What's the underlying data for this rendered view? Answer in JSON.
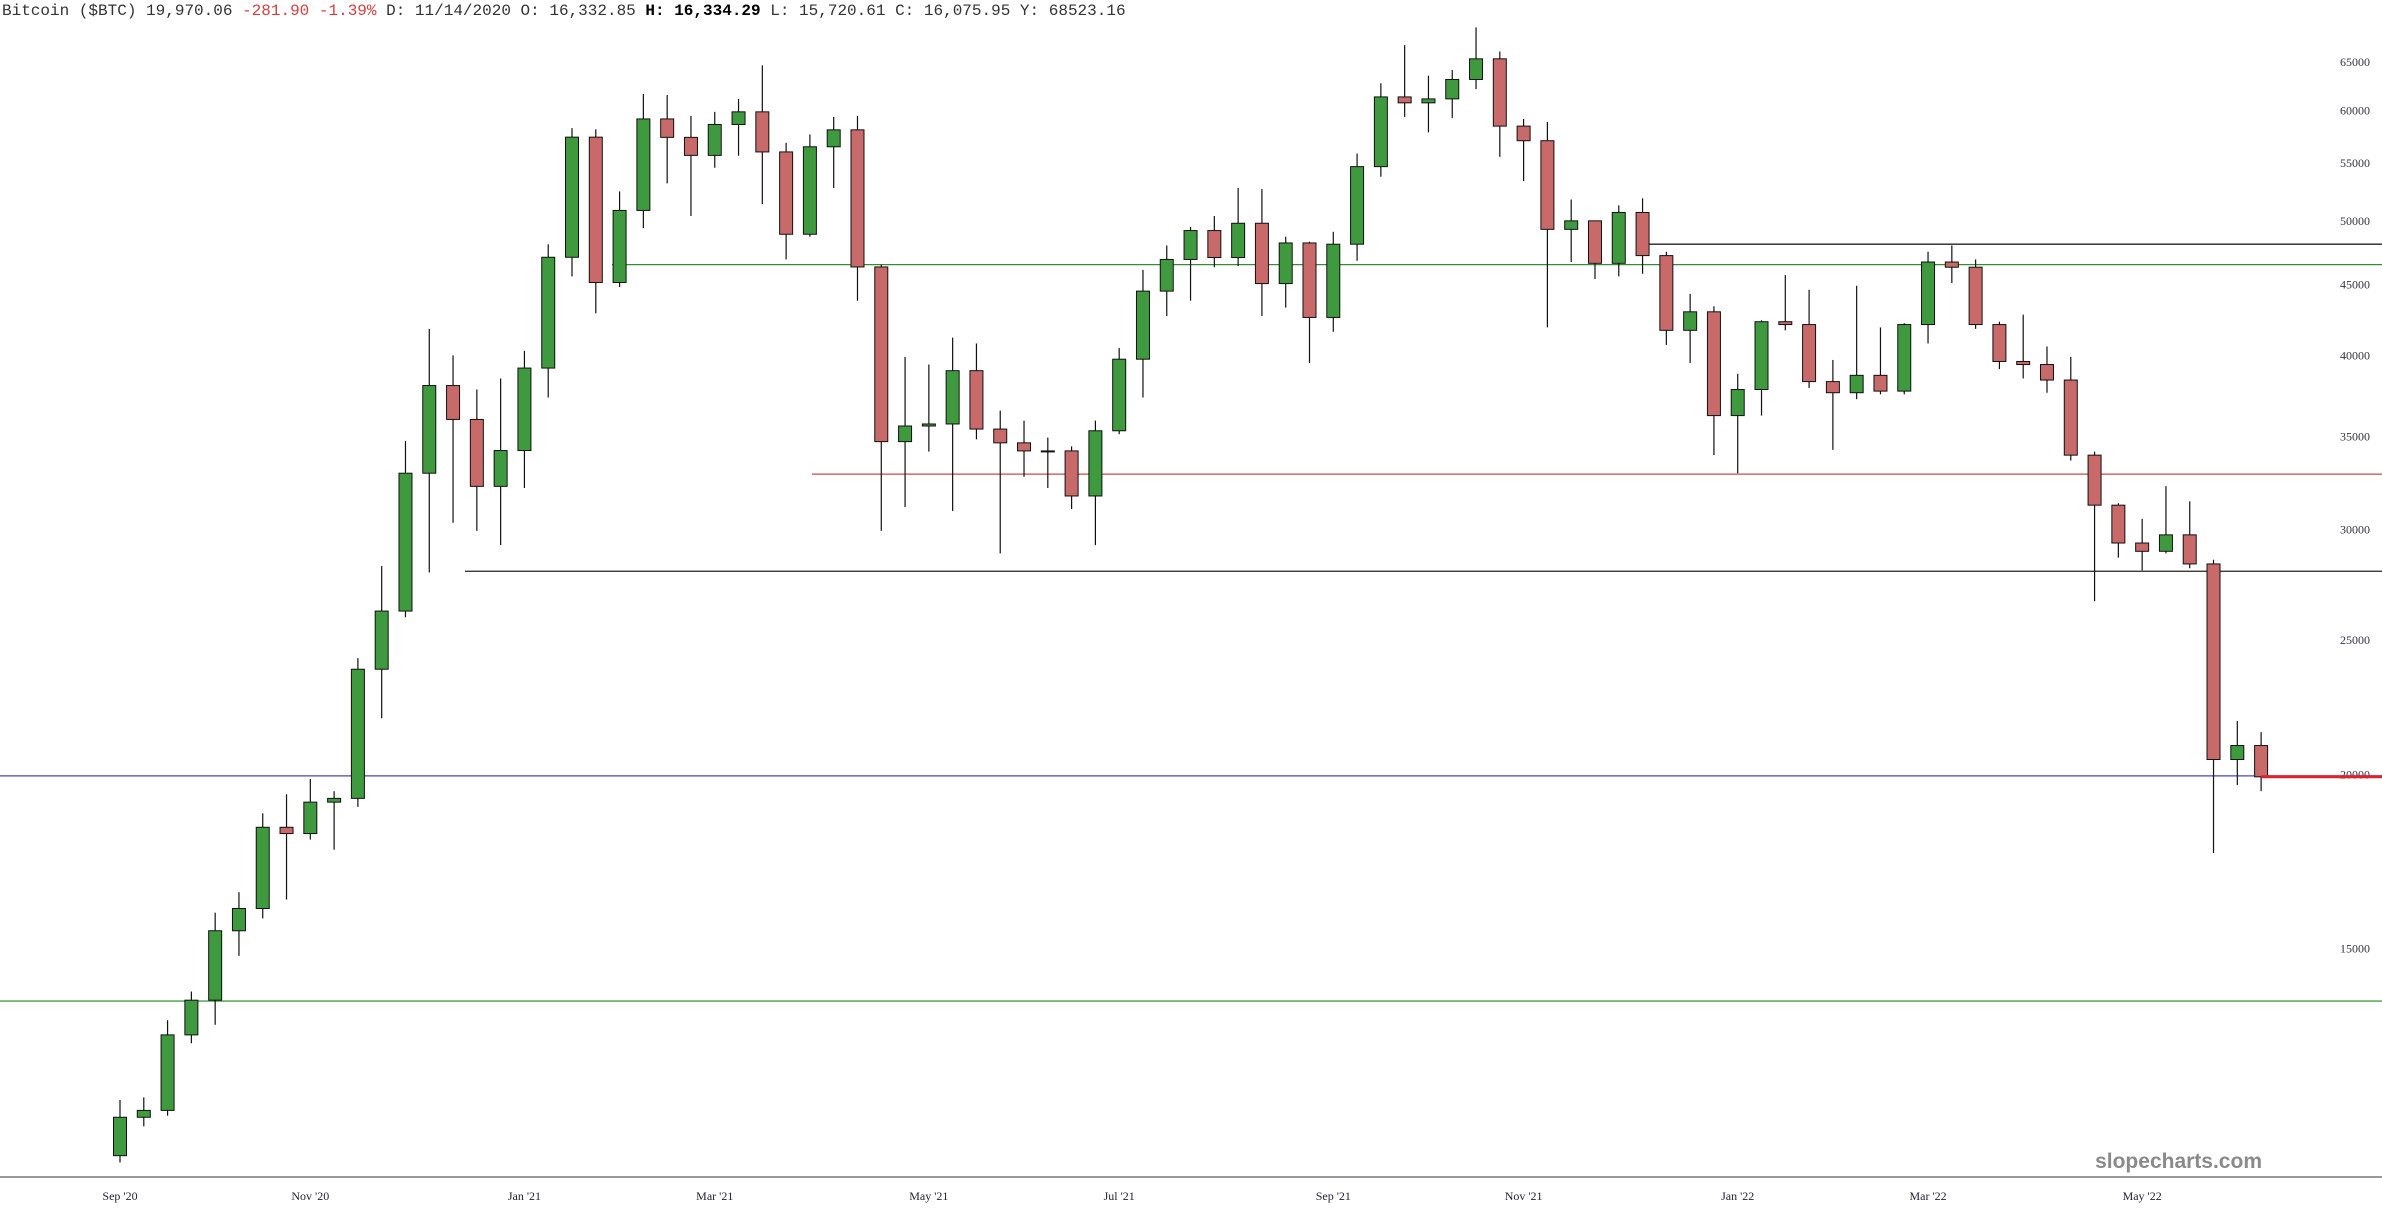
{
  "header": {
    "symbol": "Bitcoin ($BTC)",
    "last": "19,970.06",
    "change": "-281.90",
    "change_pct": "-1.39%",
    "fields": [
      {
        "label": "D:",
        "value": "11/14/2020"
      },
      {
        "label": "O:",
        "value": "16,332.85"
      },
      {
        "label": "H:",
        "value": "16,334.29"
      },
      {
        "label": "L:",
        "value": "15,720.61"
      },
      {
        "label": "C:",
        "value": "16,075.95"
      },
      {
        "label": "Y:",
        "value": "68523.16"
      }
    ]
  },
  "watermark": "slopecharts.com",
  "chart_data": {
    "type": "candlestick",
    "log_scale": true,
    "up_color": "#3f9a3f",
    "down_color": "#c86a6a",
    "categories": [
      "Sep '20",
      null,
      null,
      null,
      null,
      null,
      null,
      null,
      "Nov '20",
      null,
      null,
      null,
      null,
      null,
      null,
      null,
      null,
      "Jan '21",
      null,
      null,
      null,
      null,
      null,
      null,
      null,
      "Mar '21",
      null,
      null,
      null,
      null,
      null,
      null,
      null,
      null,
      "May '21",
      null,
      null,
      null,
      null,
      null,
      null,
      null,
      "Jul '21",
      null,
      null,
      null,
      null,
      null,
      null,
      null,
      null,
      "Sep '21",
      null,
      null,
      null,
      null,
      null,
      null,
      null,
      "Nov '21",
      null,
      null,
      null,
      null,
      null,
      null,
      null,
      null,
      "Jan '22",
      null,
      null,
      null,
      null,
      null,
      null,
      null,
      "Mar '22",
      null,
      null,
      null,
      null,
      null,
      null,
      null,
      null,
      "May '22",
      null,
      null,
      null,
      null,
      null
    ],
    "open": [
      10670,
      11370,
      11500,
      13030,
      13800,
      15480,
      16060,
      18370,
      18180,
      19150,
      19270,
      23860,
      26270,
      33000,
      38150,
      36070,
      32290,
      34260,
      39270,
      47170,
      57540,
      45240,
      50970,
      59300,
      57520,
      55830,
      58760,
      60000,
      56150,
      49000,
      56630,
      58240,
      46420,
      34770,
      35680,
      35800,
      39100,
      35500,
      34700,
      34240,
      34240,
      31780,
      35400,
      39850,
      44600,
      47000,
      49300,
      47150,
      49900,
      45160,
      48300,
      42700,
      48200,
      54800,
      61500,
      60900,
      61300,
      63300,
      65500,
      58600,
      57200,
      49400,
      50100,
      46700,
      50800,
      47300,
      41800,
      43100,
      36300,
      37900,
      42400,
      42200,
      38400,
      37700,
      38800,
      37800,
      42200,
      46800,
      46400,
      42200,
      39700,
      39500,
      38500,
      34000,
      31300,
      29400,
      29000,
      29800,
      28400,
      20550,
      21030
    ],
    "high": [
      11700,
      11750,
      13350,
      14000,
      15950,
      16500,
      18800,
      19400,
      19900,
      19500,
      24300,
      28300,
      34800,
      41900,
      40100,
      37900,
      38600,
      40400,
      48200,
      58400,
      58300,
      52600,
      61800,
      61700,
      59600,
      60000,
      61300,
      64800,
      57000,
      57800,
      59500,
      59600,
      46600,
      40000,
      39500,
      41300,
      40900,
      36600,
      36000,
      35000,
      34500,
      36000,
      40600,
      46200,
      48100,
      49600,
      50500,
      52900,
      52800,
      48800,
      48400,
      49200,
      56000,
      62900,
      67000,
      63700,
      64300,
      69000,
      66300,
      59300,
      59000,
      51900,
      50100,
      51400,
      52000,
      47600,
      44400,
      43500,
      38900,
      42500,
      45800,
      44700,
      39800,
      45000,
      42000,
      42300,
      47600,
      48100,
      47000,
      42400,
      42900,
      40700,
      40000,
      34200,
      31400,
      30600,
      32300,
      31500,
      28600,
      21900,
      21500
    ],
    "low": [
      10550,
      11200,
      11400,
      12850,
      13250,
      14850,
      15800,
      16300,
      18000,
      17700,
      19000,
      22000,
      26000,
      28000,
      30400,
      30000,
      29300,
      32200,
      37400,
      45700,
      43000,
      44900,
      49500,
      53300,
      50500,
      54700,
      55800,
      51500,
      47000,
      48800,
      52900,
      43900,
      30000,
      31200,
      34200,
      31000,
      34900,
      28900,
      32800,
      32200,
      31100,
      29300,
      35200,
      37400,
      42800,
      43900,
      46400,
      46500,
      42800,
      43400,
      39600,
      41700,
      46900,
      53900,
      59500,
      58000,
      59400,
      62300,
      55700,
      53500,
      42000,
      46800,
      45500,
      45700,
      45900,
      40800,
      39600,
      34000,
      33000,
      36300,
      41800,
      38000,
      34300,
      37300,
      37600,
      37600,
      40900,
      45200,
      41900,
      39200,
      38600,
      37700,
      33700,
      26700,
      28700,
      28100,
      28900,
      28200,
      17600,
      19700,
      19500
    ],
    "close": [
      11370,
      11500,
      13030,
      13800,
      15480,
      16060,
      18370,
      18180,
      19150,
      19270,
      23860,
      26270,
      33000,
      38150,
      36070,
      32290,
      34260,
      39270,
      47170,
      57540,
      45240,
      50970,
      59300,
      57520,
      55830,
      58760,
      60000,
      56150,
      49000,
      56630,
      58240,
      46420,
      34770,
      35680,
      35800,
      39100,
      35500,
      34700,
      34240,
      34240,
      31780,
      35400,
      39850,
      44600,
      47000,
      49300,
      47150,
      49900,
      45160,
      48300,
      42700,
      48200,
      54800,
      61500,
      60900,
      61300,
      63300,
      65500,
      58600,
      57200,
      49400,
      50100,
      46700,
      50800,
      47300,
      41800,
      43100,
      36300,
      37900,
      42400,
      42200,
      38400,
      37700,
      38800,
      37800,
      42200,
      46800,
      46400,
      42200,
      39700,
      39500,
      38500,
      34000,
      31300,
      29400,
      29000,
      29800,
      28400,
      20550,
      21030,
      19970
    ],
    "ylim": [
      10300,
      69500
    ],
    "yticks": [
      15000,
      20000,
      25000,
      30000,
      35000,
      40000,
      45000,
      50000,
      55000,
      60000,
      65000
    ],
    "levels": [
      {
        "value": 46600,
        "color": "#3a8a3a"
      },
      {
        "value": 32950,
        "color": "#d04848"
      },
      {
        "value": 28060,
        "color": "#222222"
      },
      {
        "value": 48200,
        "color": "#222222"
      },
      {
        "value": 20000,
        "color": "#4a4ab8"
      },
      {
        "value": 13780,
        "color": "#4a9a4a"
      }
    ],
    "last_color": "#e0202a"
  }
}
